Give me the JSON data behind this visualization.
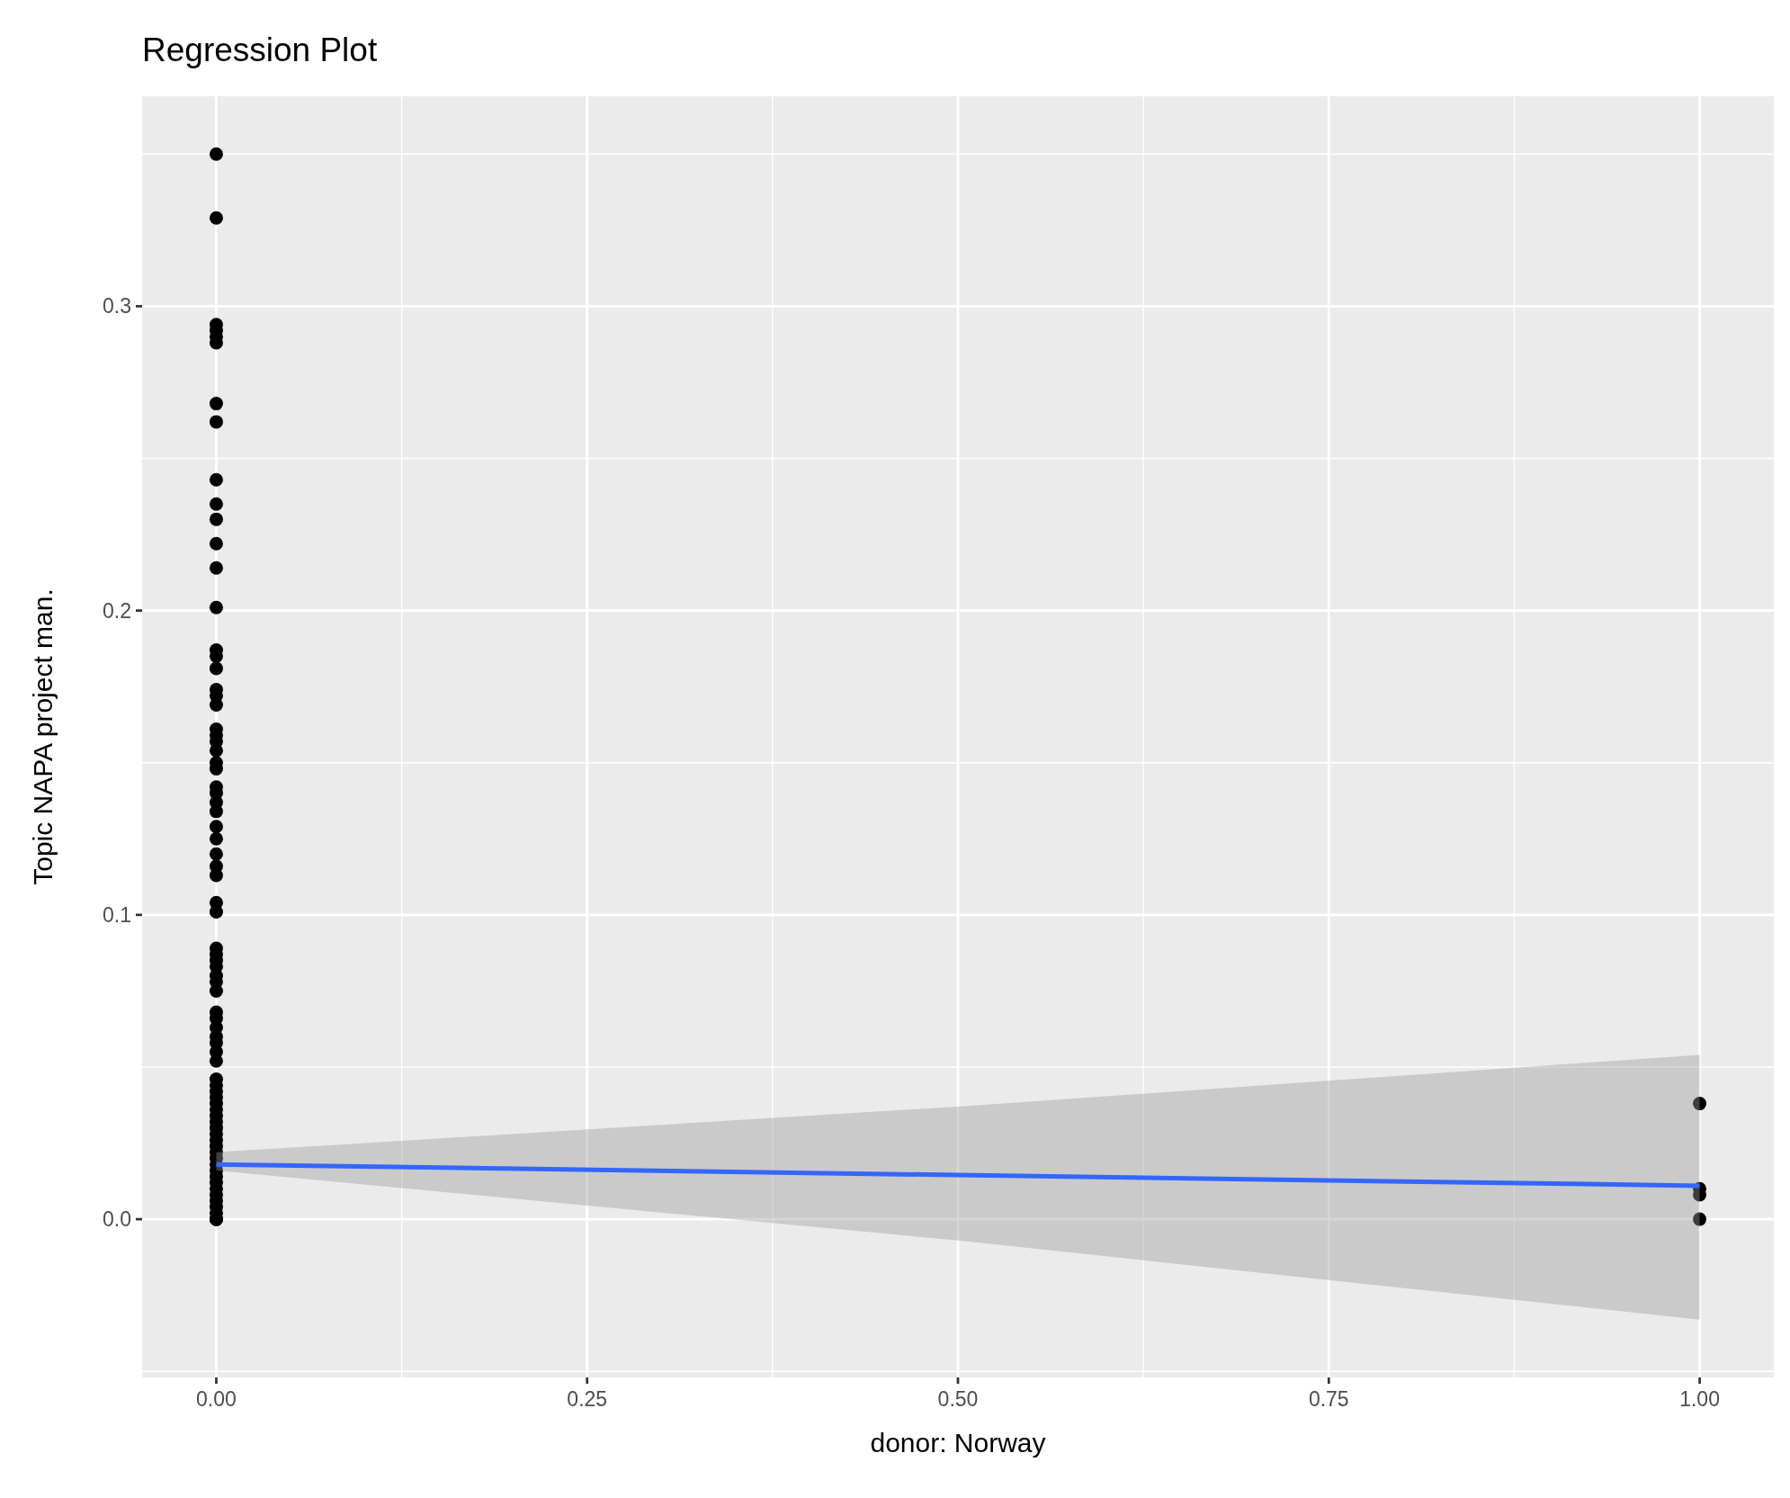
{
  "chart_data": {
    "type": "scatter",
    "title": "Regression Plot",
    "xlabel": "donor: Norway",
    "ylabel": "Topic NAPA project man.",
    "xlim": [
      -0.05,
      1.05
    ],
    "xticks": [
      {
        "value": 0,
        "label": "0.00"
      },
      {
        "value": 0.25,
        "label": "0.25"
      },
      {
        "value": 0.5,
        "label": "0.50"
      },
      {
        "value": 0.75,
        "label": "0.75"
      },
      {
        "value": 1,
        "label": "1.00"
      }
    ],
    "ylim": [
      -0.052,
      0.369
    ],
    "yticks": [
      {
        "value": 0,
        "label": "0.0"
      },
      {
        "value": 0.1,
        "label": "0.1"
      },
      {
        "value": 0.2,
        "label": "0.2"
      },
      {
        "value": 0.3,
        "label": "0.3"
      }
    ],
    "grid": true,
    "series": [
      {
        "color": "#000000",
        "marker": "circle",
        "x": [
          0,
          0,
          0,
          0,
          0,
          0,
          0,
          0,
          0,
          0,
          0,
          0,
          0,
          0,
          0,
          0,
          0,
          0,
          0,
          0,
          0,
          0,
          0,
          0,
          0,
          0,
          0,
          0,
          0,
          0,
          0,
          0,
          0,
          0,
          0,
          0,
          0,
          0,
          0,
          0,
          0,
          0,
          0,
          0,
          0,
          0,
          0,
          0,
          0,
          0,
          0,
          0,
          0,
          0,
          0,
          0,
          0,
          0,
          0,
          0,
          0,
          0,
          0,
          0,
          0,
          0,
          0,
          0,
          0,
          0,
          0,
          0,
          0,
          0,
          0,
          0,
          0,
          1,
          1,
          1,
          1
        ],
        "values": [
          0.35,
          0.329,
          0.294,
          0.292,
          0.29,
          0.288,
          0.268,
          0.262,
          0.243,
          0.235,
          0.23,
          0.222,
          0.214,
          0.201,
          0.187,
          0.185,
          0.181,
          0.174,
          0.172,
          0.169,
          0.161,
          0.159,
          0.157,
          0.154,
          0.15,
          0.148,
          0.142,
          0.14,
          0.137,
          0.134,
          0.129,
          0.125,
          0.12,
          0.116,
          0.113,
          0.104,
          0.101,
          0.089,
          0.087,
          0.085,
          0.083,
          0.08,
          0.078,
          0.075,
          0.068,
          0.066,
          0.063,
          0.06,
          0.058,
          0.055,
          0.052,
          0.046,
          0.044,
          0.042,
          0.04,
          0.038,
          0.036,
          0.034,
          0.032,
          0.03,
          0.028,
          0.026,
          0.024,
          0.022,
          0.02,
          0.018,
          0.016,
          0.014,
          0.012,
          0.01,
          0.008,
          0.006,
          0.004,
          0.002,
          0.0,
          0.0,
          0.0,
          0.038,
          0.01,
          0.008,
          0.0
        ]
      },
      {
        "type": "line",
        "color": "#3366ff",
        "x": [
          0,
          0.5,
          1
        ],
        "values": [
          0.018,
          0.0145,
          0.011
        ],
        "lower": [
          0.016,
          -0.007,
          -0.033
        ],
        "upper": [
          0.022,
          0.037,
          0.054
        ]
      }
    ]
  }
}
